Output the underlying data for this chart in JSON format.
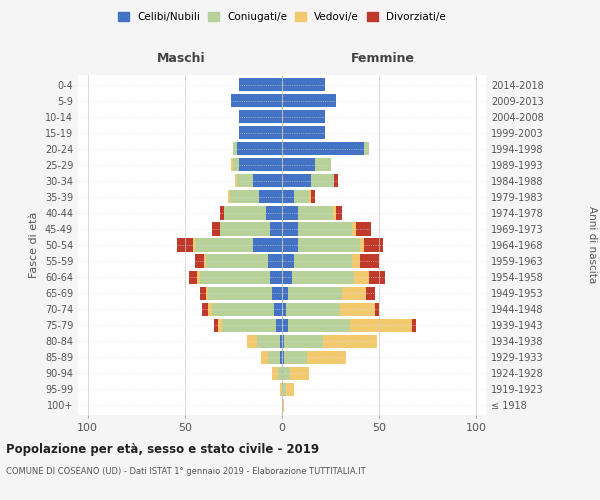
{
  "age_groups": [
    "100+",
    "95-99",
    "90-94",
    "85-89",
    "80-84",
    "75-79",
    "70-74",
    "65-69",
    "60-64",
    "55-59",
    "50-54",
    "45-49",
    "40-44",
    "35-39",
    "30-34",
    "25-29",
    "20-24",
    "15-19",
    "10-14",
    "5-9",
    "0-4"
  ],
  "birth_years": [
    "≤ 1918",
    "1919-1923",
    "1924-1928",
    "1929-1933",
    "1934-1938",
    "1939-1943",
    "1944-1948",
    "1949-1953",
    "1954-1958",
    "1959-1963",
    "1964-1968",
    "1969-1973",
    "1974-1978",
    "1979-1983",
    "1984-1988",
    "1989-1993",
    "1994-1998",
    "1999-2003",
    "2004-2008",
    "2009-2013",
    "2014-2018"
  ],
  "colors": {
    "celibe": "#4472c4",
    "coniugato": "#b8d09a",
    "vedovo": "#f2c96e",
    "divorziato": "#c0392b"
  },
  "maschi": {
    "celibe": [
      0,
      0,
      0,
      1,
      1,
      3,
      4,
      5,
      6,
      7,
      15,
      6,
      8,
      12,
      15,
      22,
      23,
      22,
      22,
      26,
      22
    ],
    "coniugato": [
      0,
      0,
      2,
      6,
      12,
      28,
      32,
      33,
      36,
      32,
      30,
      26,
      22,
      15,
      8,
      3,
      2,
      0,
      0,
      0,
      0
    ],
    "vedovo": [
      0,
      1,
      3,
      4,
      5,
      2,
      2,
      1,
      2,
      1,
      1,
      0,
      0,
      1,
      1,
      1,
      0,
      0,
      0,
      0,
      0
    ],
    "divorziato": [
      0,
      0,
      0,
      0,
      0,
      2,
      3,
      3,
      4,
      5,
      8,
      4,
      2,
      0,
      0,
      0,
      0,
      0,
      0,
      0,
      0
    ]
  },
  "femmine": {
    "nubile": [
      0,
      0,
      0,
      1,
      1,
      3,
      2,
      3,
      5,
      6,
      8,
      8,
      8,
      6,
      15,
      17,
      42,
      22,
      22,
      28,
      22
    ],
    "coniugata": [
      0,
      2,
      4,
      12,
      20,
      32,
      28,
      28,
      32,
      30,
      32,
      28,
      18,
      8,
      12,
      8,
      3,
      0,
      0,
      0,
      0
    ],
    "vedova": [
      1,
      4,
      10,
      20,
      28,
      32,
      18,
      12,
      8,
      4,
      2,
      2,
      2,
      1,
      0,
      0,
      0,
      0,
      0,
      0,
      0
    ],
    "divorziata": [
      0,
      0,
      0,
      0,
      0,
      2,
      2,
      5,
      8,
      10,
      10,
      8,
      3,
      2,
      2,
      0,
      0,
      0,
      0,
      0,
      0
    ]
  },
  "xlim": [
    -105,
    105
  ],
  "xticks": [
    -100,
    -50,
    0,
    50,
    100
  ],
  "xticklabels": [
    "100",
    "50",
    "0",
    "50",
    "100"
  ],
  "title": "Popolazione per età, sesso e stato civile - 2019",
  "subtitle": "COMUNE DI COSEANO (UD) - Dati ISTAT 1° gennaio 2019 - Elaborazione TUTTITALIA.IT",
  "ylabel_left": "Fasce di età",
  "ylabel_right": "Anni di nascita",
  "legend_labels": [
    "Celibi/Nubili",
    "Coniugati/e",
    "Vedovi/e",
    "Divorziati/e"
  ],
  "legend_colors": [
    "#4472c4",
    "#b8d09a",
    "#f2c96e",
    "#c0392b"
  ],
  "maschi_label": "Maschi",
  "femmine_label": "Femmine",
  "bg_color": "#f5f5f5",
  "plot_bg_color": "#ffffff",
  "bar_height": 0.82,
  "grid_color": "#cccccc"
}
